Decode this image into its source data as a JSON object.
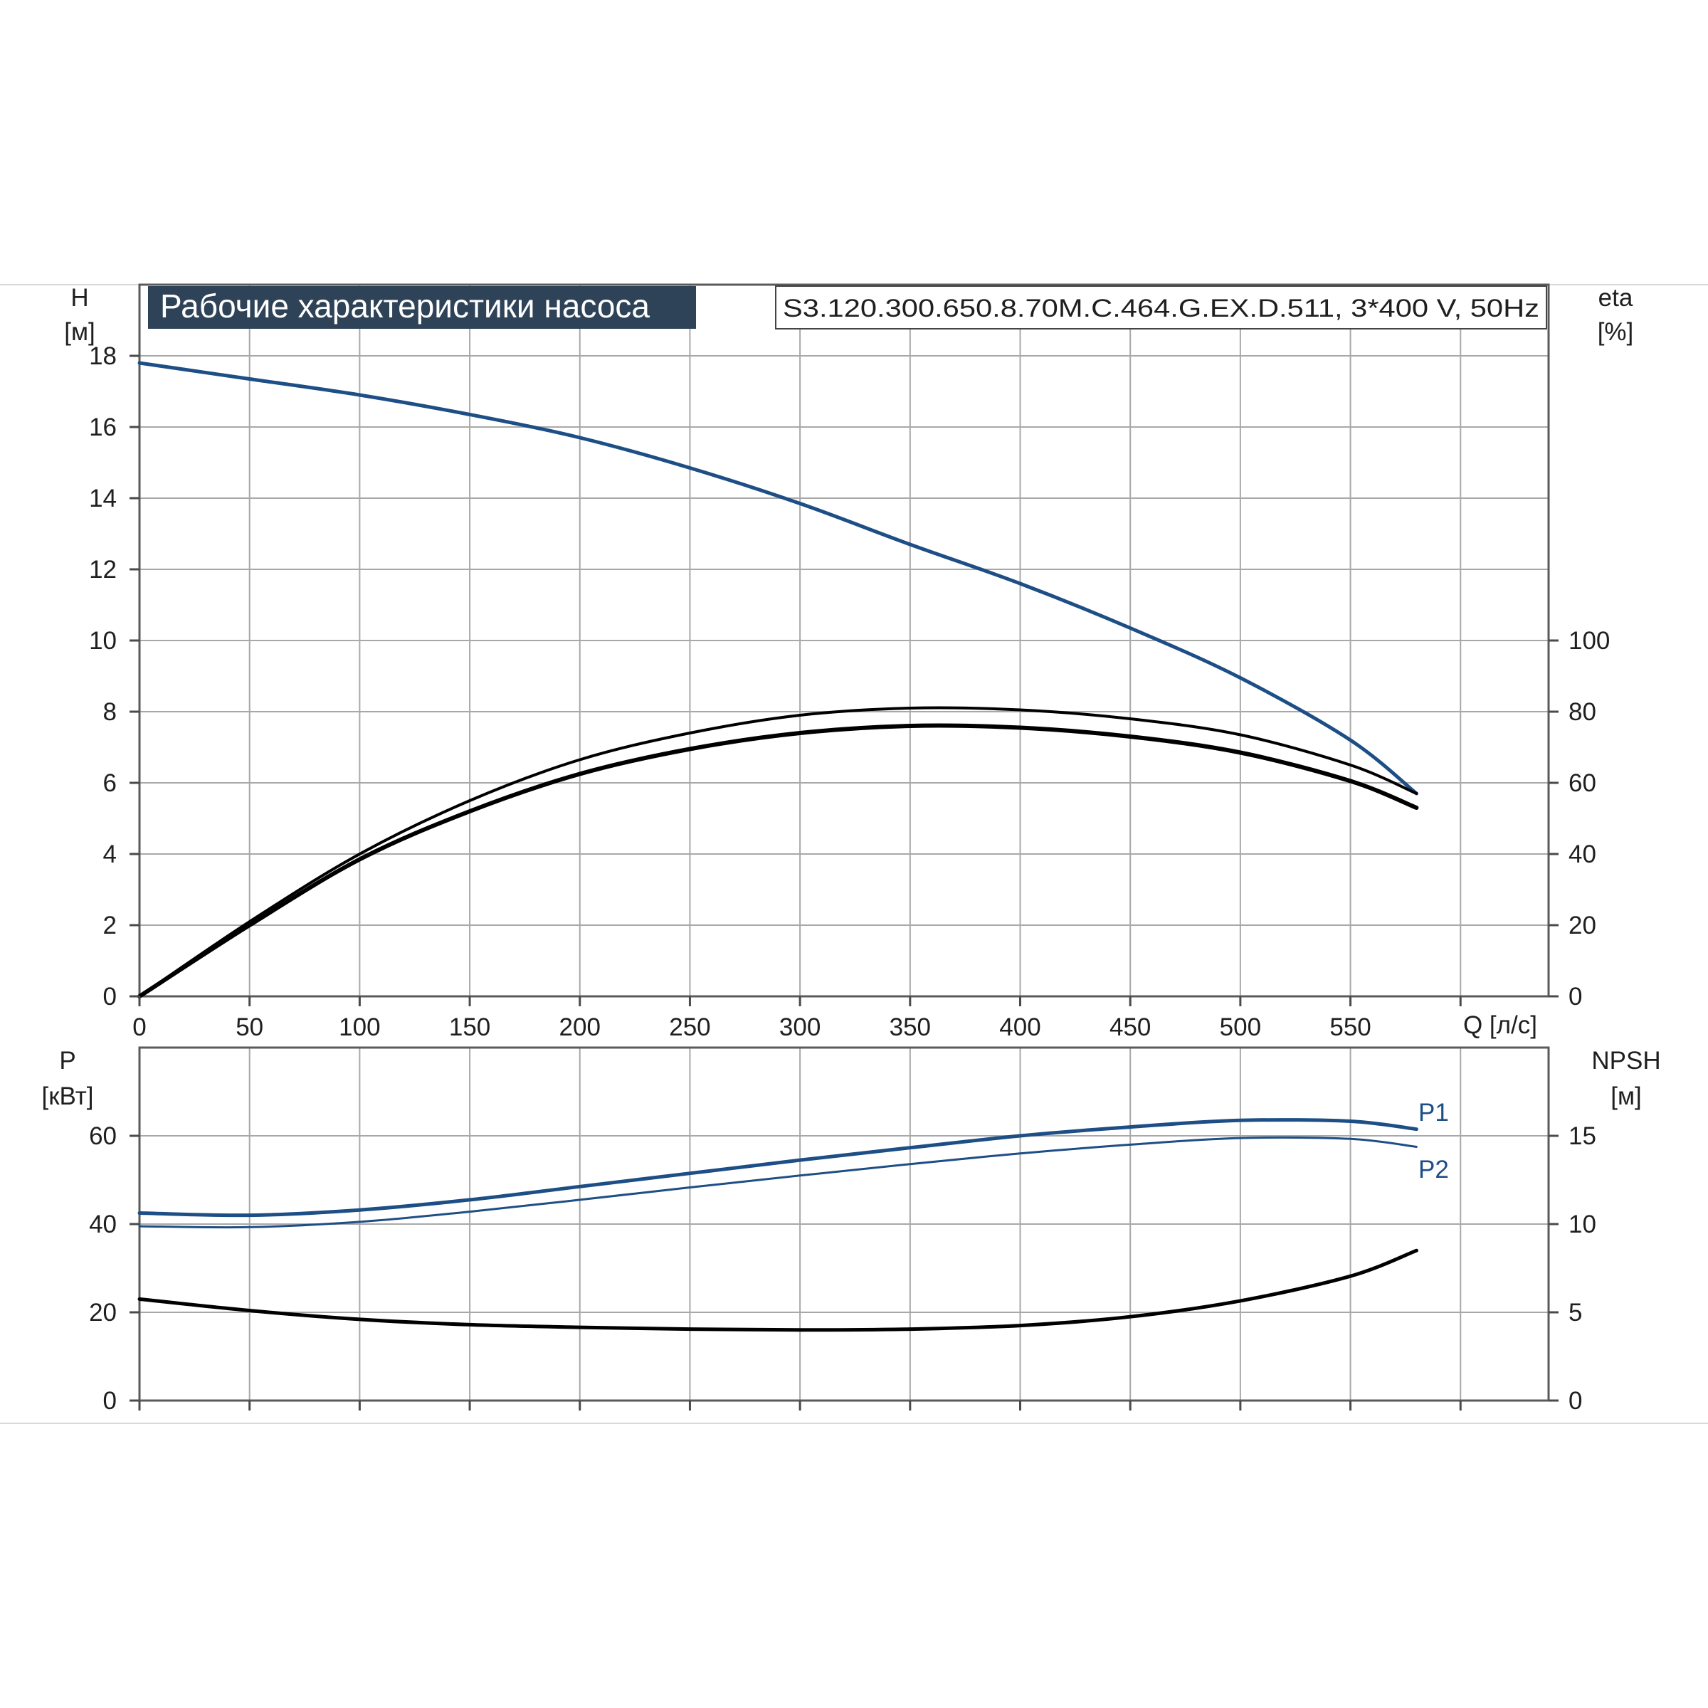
{
  "header": {
    "title": "Рабочие характеристики насоса",
    "model": "S3.120.300.650.8.70M.C.464.G.EX.D.511, 3*400 V, 50Hz"
  },
  "colors": {
    "head_curve": "#1d4e85",
    "power_curve": "#1d4e85",
    "efficiency_curve": "#000000",
    "npsh_curve": "#000000",
    "grid": "#a8a8a8",
    "axis": "#4a4a4a",
    "title_bg": "#2f4358",
    "title_text": "#ffffff"
  },
  "chart_data": [
    {
      "type": "line",
      "panel": "top",
      "xlabel": "Q [л/с]",
      "ylabel": "H",
      "ylabel_unit": "[м]",
      "y2label": "eta",
      "y2label_unit": "[%]",
      "xlim": [
        0,
        640
      ],
      "ylim": [
        0,
        20
      ],
      "y2lim": [
        0,
        200
      ],
      "x_ticks": [
        "0",
        "50",
        "100",
        "150",
        "200",
        "250",
        "300",
        "350",
        "400",
        "450",
        "500",
        "550"
      ],
      "y_ticks": [
        "0",
        "2",
        "4",
        "6",
        "8",
        "10",
        "12",
        "14",
        "16",
        "18"
      ],
      "y2_ticks": [
        "0",
        "20",
        "40",
        "60",
        "80",
        "100"
      ],
      "grid": true,
      "series": [
        {
          "axis": "left",
          "color": "#1d4e85",
          "width": 5,
          "points": [
            [
              0,
              17.8
            ],
            [
              50,
              17.35
            ],
            [
              100,
              16.9
            ],
            [
              150,
              16.35
            ],
            [
              200,
              15.7
            ],
            [
              250,
              14.85
            ],
            [
              300,
              13.85
            ],
            [
              350,
              12.7
            ],
            [
              400,
              11.6
            ],
            [
              450,
              10.35
            ],
            [
              500,
              8.95
            ],
            [
              550,
              7.2
            ],
            [
              580,
              5.7
            ]
          ]
        },
        {
          "axis": "right",
          "color": "#000000",
          "width": 4,
          "points": [
            [
              0,
              0
            ],
            [
              50,
              21
            ],
            [
              100,
              40
            ],
            [
              150,
              55
            ],
            [
              200,
              66.5
            ],
            [
              250,
              74
            ],
            [
              300,
              79
            ],
            [
              350,
              81
            ],
            [
              400,
              80.5
            ],
            [
              450,
              78
            ],
            [
              500,
              73.5
            ],
            [
              550,
              65
            ],
            [
              580,
              57
            ]
          ]
        },
        {
          "axis": "right",
          "color": "#000000",
          "width": 6,
          "points": [
            [
              0,
              0
            ],
            [
              50,
              20
            ],
            [
              100,
              38.5
            ],
            [
              150,
              52
            ],
            [
              200,
              62.5
            ],
            [
              250,
              69.5
            ],
            [
              300,
              74
            ],
            [
              350,
              76
            ],
            [
              400,
              75.5
            ],
            [
              450,
              73
            ],
            [
              500,
              68.5
            ],
            [
              550,
              60.5
            ],
            [
              580,
              53
            ]
          ]
        }
      ]
    },
    {
      "type": "line",
      "panel": "bottom",
      "xlabel": "",
      "ylabel": "P",
      "ylabel_unit": "[кВт]",
      "y2label": "NPSH",
      "y2label_unit": "[м]",
      "xlim": [
        0,
        640
      ],
      "ylim": [
        0,
        80
      ],
      "y2lim": [
        0,
        20
      ],
      "y_ticks": [
        "0",
        "20",
        "40",
        "60"
      ],
      "y2_ticks": [
        "0",
        "5",
        "10",
        "15"
      ],
      "grid": true,
      "series": [
        {
          "name": "P1",
          "axis": "left",
          "color": "#1d4e85",
          "width": 5,
          "points": [
            [
              0,
              42.5
            ],
            [
              50,
              42
            ],
            [
              100,
              43.2
            ],
            [
              150,
              45.5
            ],
            [
              200,
              48.5
            ],
            [
              250,
              51.5
            ],
            [
              300,
              54.5
            ],
            [
              350,
              57.3
            ],
            [
              400,
              60
            ],
            [
              450,
              62
            ],
            [
              500,
              63.5
            ],
            [
              550,
              63.3
            ],
            [
              580,
              61.5
            ]
          ]
        },
        {
          "name": "P2",
          "axis": "left",
          "color": "#1d4e85",
          "width": 3,
          "points": [
            [
              0,
              39.5
            ],
            [
              50,
              39.3
            ],
            [
              100,
              40.5
            ],
            [
              150,
              42.8
            ],
            [
              200,
              45.5
            ],
            [
              250,
              48.3
            ],
            [
              300,
              51
            ],
            [
              350,
              53.6
            ],
            [
              400,
              56
            ],
            [
              450,
              58
            ],
            [
              500,
              59.5
            ],
            [
              550,
              59.3
            ],
            [
              580,
              57.5
            ]
          ]
        },
        {
          "axis": "right",
          "color": "#000000",
          "width": 5,
          "points": [
            [
              0,
              5.75
            ],
            [
              50,
              5.1
            ],
            [
              100,
              4.6
            ],
            [
              150,
              4.3
            ],
            [
              200,
              4.15
            ],
            [
              250,
              4.05
            ],
            [
              300,
              4.0
            ],
            [
              350,
              4.05
            ],
            [
              400,
              4.25
            ],
            [
              450,
              4.75
            ],
            [
              500,
              5.65
            ],
            [
              550,
              7.05
            ],
            [
              580,
              8.5
            ]
          ]
        }
      ]
    }
  ]
}
